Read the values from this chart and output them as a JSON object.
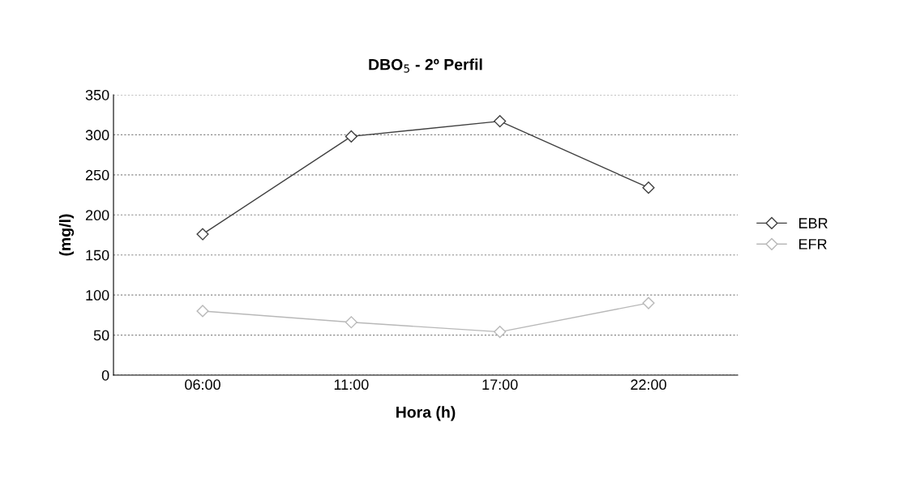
{
  "chart_data": {
    "type": "line",
    "title": "DBO$_{5}$ - 2º Perfil",
    "xlabel": "Hora (h)",
    "ylabel": "(mg/l)",
    "categories": [
      "06:00",
      "11:00",
      "17:00",
      "22:00"
    ],
    "series": [
      {
        "name": "EBR",
        "color": "#404040",
        "values": [
          176,
          298,
          317,
          234
        ]
      },
      {
        "name": "EFR",
        "color": "#b8b8b8",
        "values": [
          80,
          66,
          54,
          90
        ]
      }
    ],
    "ylim": [
      0,
      350
    ],
    "yticks": [
      0,
      50,
      100,
      150,
      200,
      250,
      300,
      350
    ],
    "grid": "y",
    "legend": "right",
    "marker": "diamond",
    "line_style": "solid"
  }
}
